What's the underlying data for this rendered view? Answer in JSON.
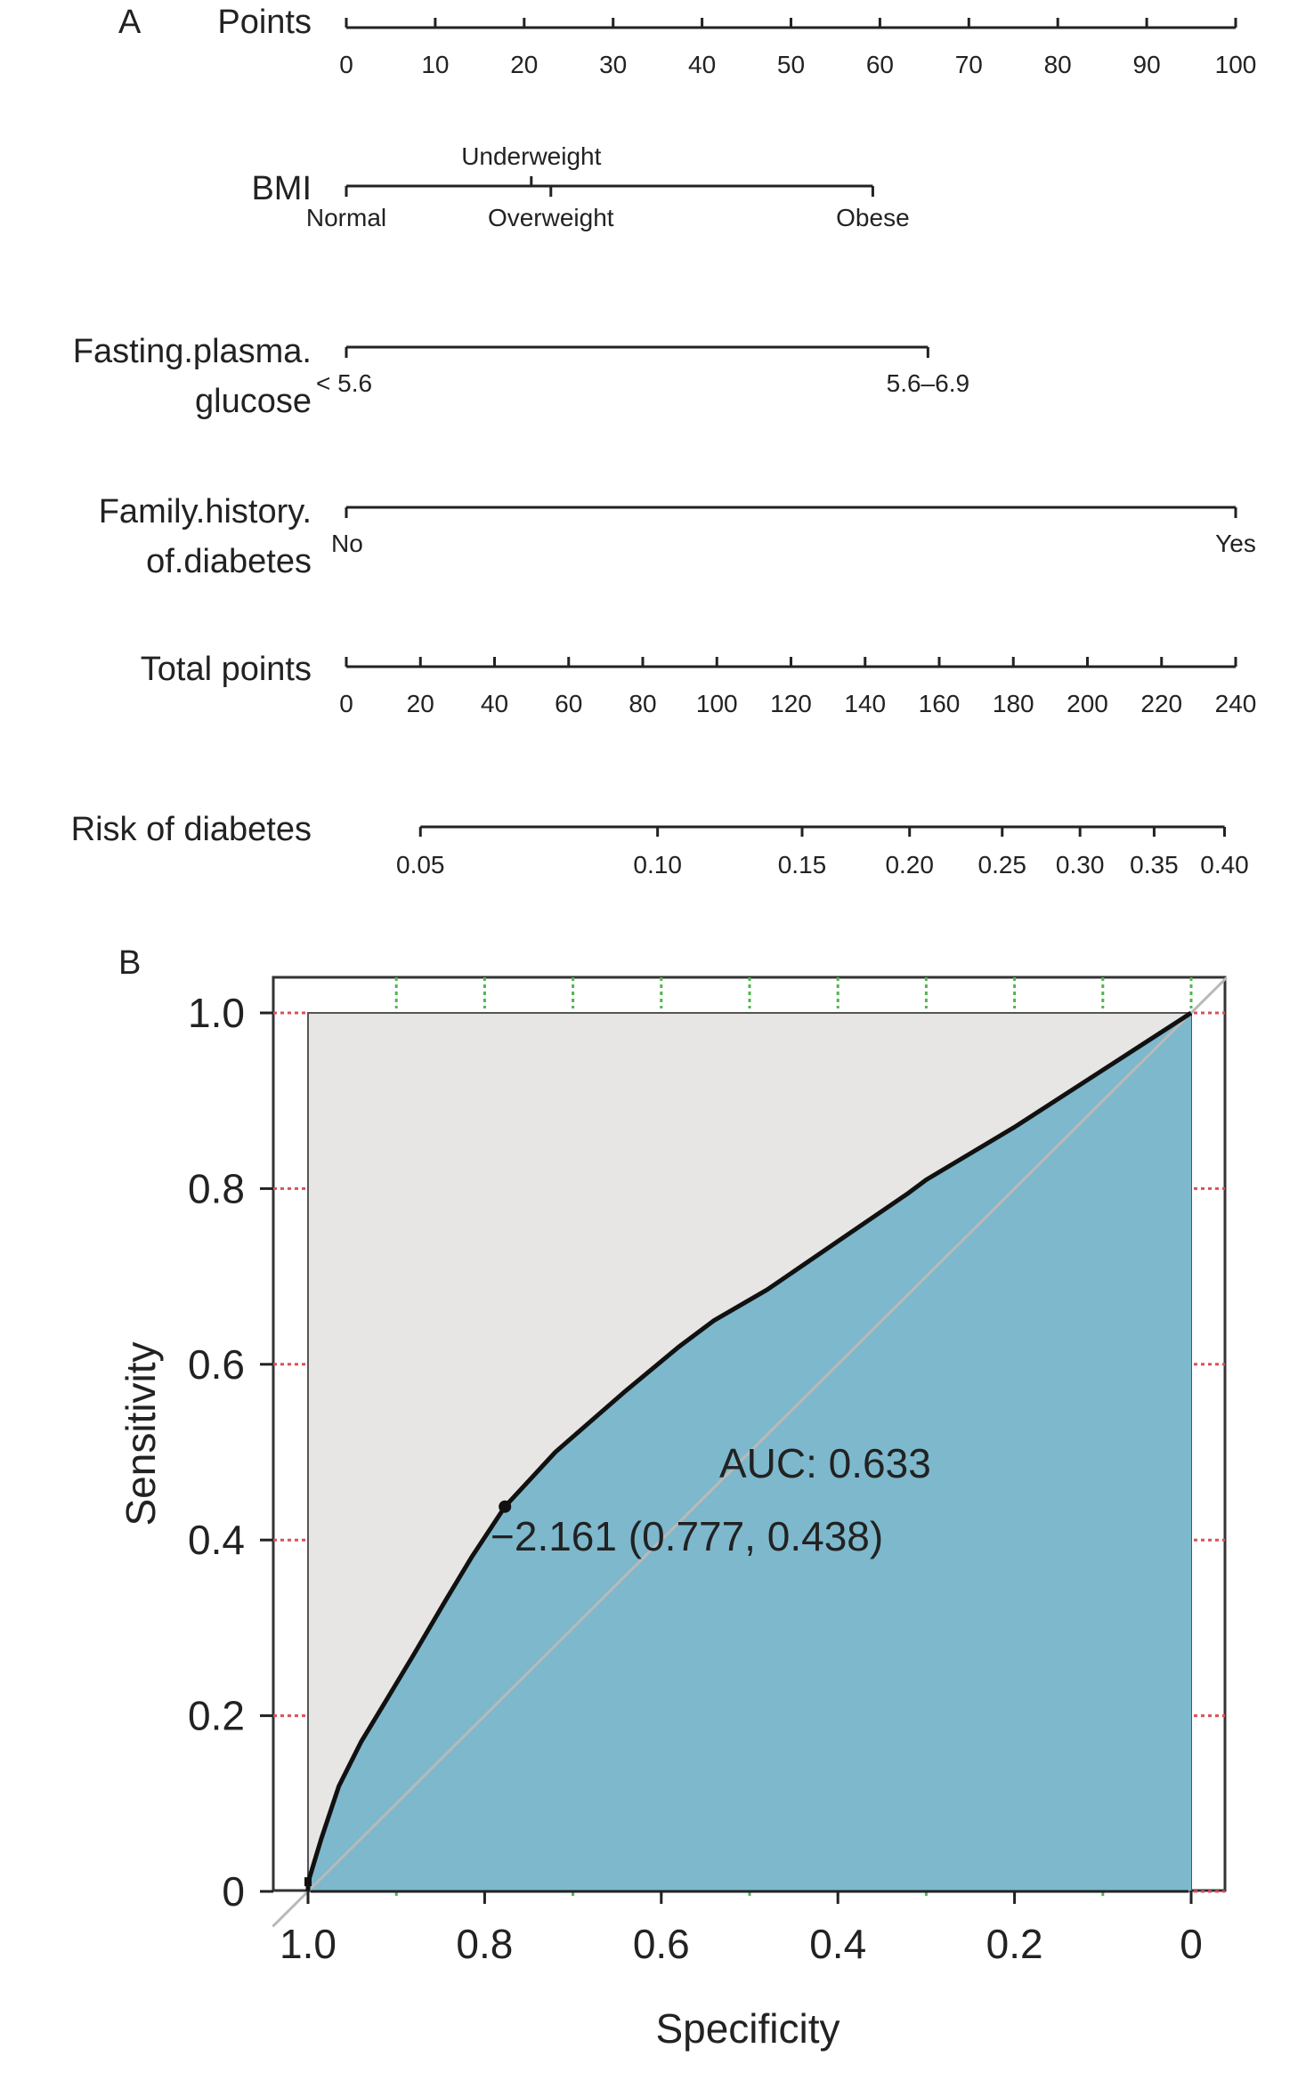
{
  "panel_a_label": "A",
  "panel_b_label": "B",
  "chart_data": [
    {
      "type": "nomogram",
      "rows": [
        {
          "name": "Points",
          "min": 0,
          "max": 100,
          "ticks": [
            0,
            10,
            20,
            30,
            40,
            50,
            60,
            70,
            80,
            90,
            100
          ],
          "tick_labels": [
            "0",
            "10",
            "20",
            "30",
            "40",
            "50",
            "60",
            "70",
            "80",
            "90",
            "100"
          ]
        },
        {
          "name": "BMI",
          "levels": [
            {
              "label": "Normal",
              "points": 0,
              "label_side": "below"
            },
            {
              "label": "Underweight",
              "points": 20.8,
              "label_side": "above"
            },
            {
              "label": "Overweight",
              "points": 23,
              "label_side": "below"
            },
            {
              "label": "Obese",
              "points": 59.2,
              "label_side": "below"
            }
          ]
        },
        {
          "name_lines": [
            "Fasting.plasma.",
            "glucose"
          ],
          "levels": [
            {
              "label": "< 5.6",
              "points": 0
            },
            {
              "label": "5.6–6.9",
              "points": 65.4
            }
          ]
        },
        {
          "name_lines": [
            "Family.history.",
            "of.diabetes"
          ],
          "levels": [
            {
              "label": "No",
              "points": 0
            },
            {
              "label": "Yes",
              "points": 100
            }
          ]
        },
        {
          "name": "Total points",
          "min": 0,
          "max": 240,
          "ticks": [
            0,
            20,
            40,
            60,
            80,
            100,
            120,
            140,
            160,
            180,
            200,
            220,
            240
          ],
          "tick_labels": [
            "0",
            "20",
            "40",
            "60",
            "80",
            "100",
            "120",
            "140",
            "160",
            "180",
            "200",
            "220",
            "240"
          ]
        },
        {
          "name": "Risk of diabetes",
          "ticks": [
            {
              "label": "0.05",
              "total_points": 20
            },
            {
              "label": "0.10",
              "total_points": 84
            },
            {
              "label": "0.15",
              "total_points": 123
            },
            {
              "label": "0.20",
              "total_points": 152
            },
            {
              "label": "0.25",
              "total_points": 177
            },
            {
              "label": "0.30",
              "total_points": 198
            },
            {
              "label": "0.35",
              "total_points": 218
            },
            {
              "label": "0.40",
              "total_points": 237
            }
          ]
        }
      ]
    },
    {
      "type": "line",
      "xlabel": "Specificity",
      "ylabel": "Sensitivity",
      "xlim": [
        1.0,
        0.0
      ],
      "ylim": [
        0,
        1.0
      ],
      "x_ticks": [
        1.0,
        0.8,
        0.6,
        0.4,
        0.2,
        0
      ],
      "x_tick_labels": [
        "1.0",
        "0.8",
        "0.6",
        "0.4",
        "0.2",
        "0"
      ],
      "y_ticks": [
        0,
        0.2,
        0.4,
        0.6,
        0.8,
        1.0
      ],
      "y_tick_labels": [
        "0",
        "0.2",
        "0.4",
        "0.6",
        "0.8",
        "1.0"
      ],
      "x_grid": [
        0.9,
        0.8,
        0.7,
        0.6,
        0.5,
        0.4,
        0.3,
        0.2,
        0.1,
        0
      ],
      "y_grid": [
        0.2,
        0.4,
        0.6,
        0.8,
        1.0
      ],
      "series": [
        {
          "points": [
            [
              1.0,
              0.0
            ],
            [
              1.0,
              0.01
            ],
            [
              0.985,
              0.06
            ],
            [
              0.965,
              0.12
            ],
            [
              0.94,
              0.17
            ],
            [
              0.91,
              0.22
            ],
            [
              0.88,
              0.27
            ],
            [
              0.845,
              0.33
            ],
            [
              0.815,
              0.38
            ],
            [
              0.777,
              0.438
            ],
            [
              0.72,
              0.5
            ],
            [
              0.64,
              0.57
            ],
            [
              0.58,
              0.62
            ],
            [
              0.54,
              0.65
            ],
            [
              0.48,
              0.685
            ],
            [
              0.4,
              0.74
            ],
            [
              0.32,
              0.795
            ],
            [
              0.3,
              0.81
            ],
            [
              0.2,
              0.87
            ],
            [
              0.1,
              0.935
            ],
            [
              0.0,
              1.0
            ]
          ]
        }
      ],
      "annotations": {
        "auc_text": "AUC: 0.633",
        "threshold_text": "−2.161 (0.777, 0.438)",
        "threshold_point": [
          0.777,
          0.438
        ]
      },
      "colors": {
        "auc_fill": "#7eb8cc",
        "background_fill": "#e7e6e5",
        "curve": "#111111",
        "x_grid": "#4cb84c",
        "y_grid": "#d9505a",
        "diagonal": "#b9b9b9"
      }
    }
  ]
}
